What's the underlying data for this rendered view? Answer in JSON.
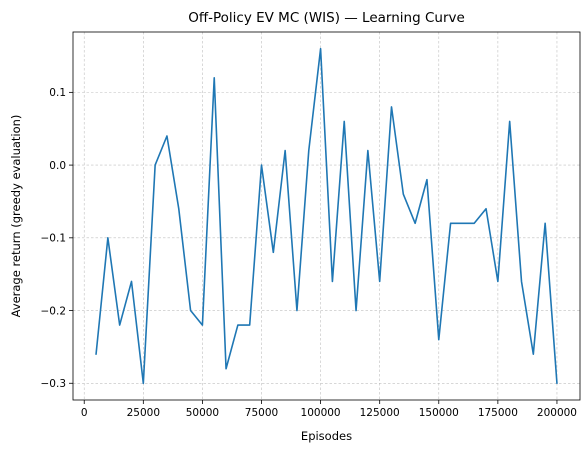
{
  "chart_data": {
    "type": "line",
    "title": "Off-Policy EV MC (WIS) — Learning Curve",
    "xlabel": "Episodes",
    "ylabel": "Average return (greedy evaluation)",
    "xlim": [
      -4750,
      209750
    ],
    "ylim": [
      -0.323,
      0.183
    ],
    "xticks": [
      0,
      25000,
      50000,
      75000,
      100000,
      125000,
      150000,
      175000,
      200000
    ],
    "xtick_labels": [
      "0",
      "25000",
      "50000",
      "75000",
      "100000",
      "125000",
      "150000",
      "175000",
      "200000"
    ],
    "yticks": [
      -0.3,
      -0.2,
      -0.1,
      0.0,
      0.1
    ],
    "ytick_labels": [
      "−0.3",
      "−0.2",
      "−0.1",
      "0.0",
      "0.1"
    ],
    "grid": true,
    "series": [
      {
        "color": "#1f77b4",
        "x": [
          5000,
          10000,
          15000,
          20000,
          25000,
          30000,
          35000,
          40000,
          45000,
          50000,
          55000,
          60000,
          65000,
          70000,
          75000,
          80000,
          85000,
          90000,
          95000,
          100000,
          105000,
          110000,
          115000,
          120000,
          125000,
          130000,
          135000,
          140000,
          145000,
          150000,
          155000,
          160000,
          165000,
          170000,
          175000,
          180000,
          185000,
          190000,
          195000,
          200000
        ],
        "values": [
          -0.26,
          -0.1,
          -0.22,
          -0.16,
          -0.3,
          0.0,
          0.04,
          -0.06,
          -0.2,
          -0.22,
          0.12,
          -0.28,
          -0.22,
          -0.22,
          0.0,
          -0.12,
          0.02,
          -0.2,
          0.02,
          0.16,
          -0.16,
          0.06,
          -0.2,
          0.02,
          -0.16,
          0.08,
          -0.04,
          -0.08,
          -0.02,
          -0.24,
          -0.08,
          -0.08,
          -0.08,
          -0.06,
          -0.16,
          0.06,
          -0.16,
          -0.26,
          -0.08,
          -0.3
        ]
      }
    ]
  }
}
